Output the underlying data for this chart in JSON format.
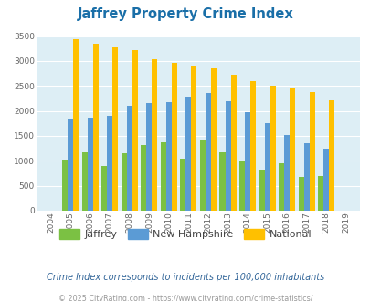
{
  "title": "Jaffrey Property Crime Index",
  "years": [
    2004,
    2005,
    2006,
    2007,
    2008,
    2009,
    2010,
    2011,
    2012,
    2013,
    2014,
    2015,
    2016,
    2017,
    2018,
    2019
  ],
  "jaffrey": [
    0,
    1030,
    1170,
    900,
    1150,
    1310,
    1380,
    1050,
    1430,
    1170,
    1010,
    820,
    950,
    680,
    700,
    0
  ],
  "new_hampshire": [
    0,
    1850,
    1870,
    1900,
    2100,
    2150,
    2180,
    2290,
    2350,
    2190,
    1970,
    1760,
    1510,
    1360,
    1240,
    0
  ],
  "national": [
    0,
    3430,
    3340,
    3270,
    3210,
    3040,
    2960,
    2900,
    2860,
    2730,
    2590,
    2500,
    2470,
    2380,
    2210,
    0
  ],
  "bar_width": 0.28,
  "colors": {
    "jaffrey": "#7bc143",
    "new_hampshire": "#5b9bd5",
    "national": "#ffc000"
  },
  "bg_color": "#ddeef5",
  "ylim": [
    0,
    3500
  ],
  "yticks": [
    0,
    500,
    1000,
    1500,
    2000,
    2500,
    3000,
    3500
  ],
  "legend_labels": [
    "Jaffrey",
    "New Hampshire",
    "National"
  ],
  "footnote1": "Crime Index corresponds to incidents per 100,000 inhabitants",
  "footnote2": "© 2025 CityRating.com - https://www.cityrating.com/crime-statistics/",
  "title_color": "#1a6fa8",
  "footnote1_color": "#336699",
  "footnote2_color": "#999999"
}
